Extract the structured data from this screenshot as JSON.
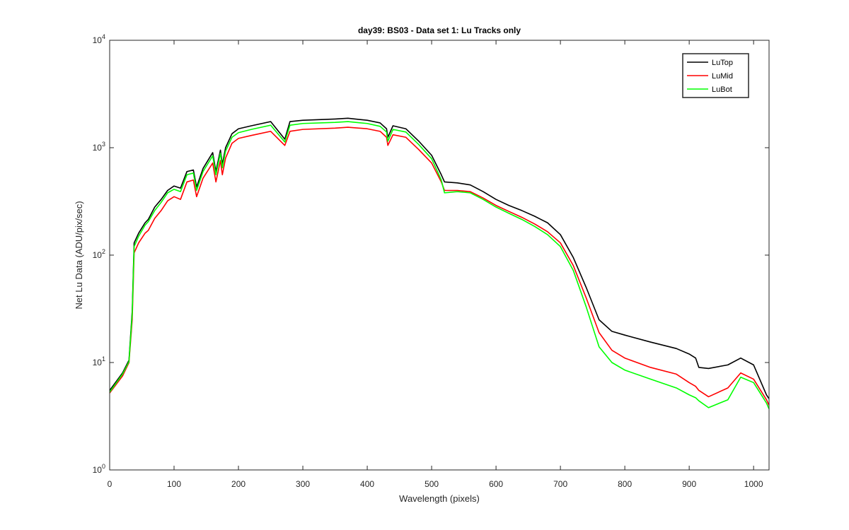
{
  "chart_data": {
    "type": "line",
    "title": "day39: BS03 - Data set 1: Lu Tracks only",
    "x_label": "Wavelength (pixels)",
    "y_label": "Net Lu Data (ADU/pix/sec)",
    "log_y": true,
    "legend_position": "top-right",
    "xlim": [
      0,
      1024
    ],
    "ylim": [
      1,
      10000
    ],
    "xticks": [
      0,
      100,
      200,
      300,
      400,
      500,
      600,
      700,
      800,
      900,
      1000
    ],
    "yticks": [
      {
        "value": 1,
        "label": "10^0"
      },
      {
        "value": 10,
        "label": "10^1"
      },
      {
        "value": 100,
        "label": "10^2"
      },
      {
        "value": 1000,
        "label": "10^3"
      },
      {
        "value": 10000,
        "label": "10^4"
      }
    ],
    "x": [
      0,
      20,
      30,
      35,
      38,
      45,
      55,
      60,
      70,
      80,
      90,
      100,
      110,
      120,
      130,
      135,
      145,
      160,
      165,
      172,
      175,
      180,
      190,
      200,
      220,
      250,
      272,
      280,
      300,
      350,
      370,
      400,
      420,
      430,
      432,
      440,
      460,
      480,
      500,
      515,
      520,
      540,
      560,
      580,
      600,
      620,
      640,
      660,
      680,
      700,
      720,
      740,
      760,
      780,
      800,
      840,
      880,
      900,
      910,
      915,
      930,
      960,
      980,
      1000,
      1020,
      1024
    ],
    "series": [
      {
        "name": "LuTop",
        "color": "#000000",
        "values": [
          5.5,
          8,
          10.5,
          30,
          130,
          160,
          200,
          215,
          280,
          330,
          400,
          440,
          420,
          600,
          620,
          430,
          640,
          900,
          600,
          950,
          700,
          1000,
          1350,
          1500,
          1600,
          1750,
          1200,
          1750,
          1800,
          1850,
          1880,
          1800,
          1700,
          1500,
          1250,
          1600,
          1500,
          1150,
          850,
          560,
          480,
          470,
          450,
          390,
          330,
          290,
          260,
          230,
          200,
          155,
          95,
          50,
          25,
          19.5,
          18,
          15.5,
          13.5,
          12,
          11,
          9,
          8.8,
          9.5,
          11,
          9.5,
          5.0,
          4.6
        ]
      },
      {
        "name": "LuMid",
        "color": "#ff0000",
        "values": [
          5.2,
          7.5,
          10,
          25,
          105,
          130,
          160,
          170,
          220,
          260,
          320,
          350,
          330,
          480,
          500,
          350,
          520,
          720,
          480,
          760,
          560,
          800,
          1100,
          1220,
          1300,
          1420,
          1050,
          1420,
          1480,
          1520,
          1550,
          1500,
          1420,
          1250,
          1050,
          1320,
          1250,
          960,
          720,
          480,
          400,
          400,
          390,
          340,
          290,
          255,
          225,
          195,
          165,
          130,
          80,
          40,
          19,
          13,
          11,
          9,
          7.8,
          6.5,
          6.0,
          5.5,
          4.8,
          5.8,
          8,
          7,
          4.5,
          4.0
        ]
      },
      {
        "name": "LuBot",
        "color": "#00ff00",
        "values": [
          5.3,
          7.8,
          10.2,
          28,
          120,
          150,
          190,
          205,
          260,
          310,
          380,
          410,
          390,
          560,
          580,
          400,
          600,
          840,
          560,
          890,
          650,
          930,
          1250,
          1380,
          1480,
          1620,
          1130,
          1620,
          1680,
          1720,
          1750,
          1680,
          1580,
          1400,
          1150,
          1480,
          1400,
          1070,
          790,
          500,
          380,
          390,
          380,
          330,
          280,
          245,
          215,
          185,
          155,
          120,
          72,
          33,
          14,
          10,
          8.5,
          7,
          5.8,
          5,
          4.7,
          4.4,
          3.8,
          4.5,
          7.3,
          6.5,
          4.2,
          3.7
        ]
      }
    ]
  }
}
